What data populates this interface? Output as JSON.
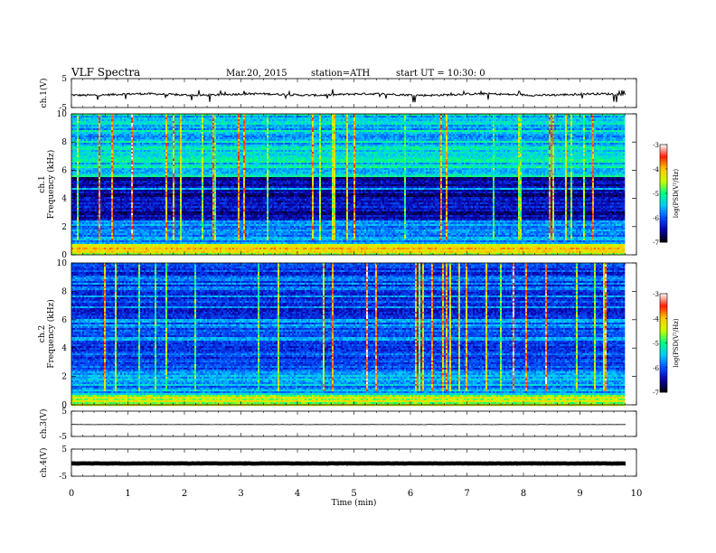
{
  "header": {
    "title": "VLF Spectra",
    "date": "Mar.20, 2015",
    "station": "station=ATH",
    "start": "start  UT =   10:30: 0"
  },
  "chart_data": [
    {
      "type": "line",
      "ylabel": "ch.1(V)",
      "y_ticks": [
        "5",
        "-5"
      ],
      "ylim": [
        -5,
        5
      ],
      "xlim": [
        0,
        10
      ],
      "description_values": {
        "baseline": -0.5,
        "spike_min": -3.0,
        "spike_max": 1.0
      },
      "color": "#000000"
    },
    {
      "type": "heatmap",
      "ylabel_top": "ch.1",
      "ylabel": "Frequency  (kHz)",
      "y_ticks": [
        "0",
        "2",
        "4",
        "6",
        "8",
        "10"
      ],
      "ylim": [
        0,
        10
      ],
      "xlim": [
        0,
        9.8
      ],
      "colorbar": {
        "label": "log(PSD(V²/Hz)",
        "ticks": [
          "-3",
          "-4",
          "-5",
          "-6",
          "-7"
        ],
        "range": [
          -7,
          -3
        ]
      }
    },
    {
      "type": "heatmap",
      "ylabel_top": "ch.2",
      "ylabel": "Frequency  (kHz)",
      "y_ticks": [
        "0",
        "2",
        "4",
        "6",
        "8",
        "10"
      ],
      "ylim": [
        0,
        10
      ],
      "xlim": [
        0,
        9.8
      ],
      "colorbar": {
        "label": "log(PSD(V²/Hz)",
        "ticks": [
          "-3",
          "-4",
          "-5",
          "-6",
          "-7"
        ],
        "range": [
          -7,
          -3
        ]
      }
    },
    {
      "type": "line",
      "ylabel": "ch.3(V)",
      "y_ticks": [
        "5",
        "-5"
      ],
      "ylim": [
        -5,
        5
      ],
      "xlim": [
        0,
        10
      ],
      "description_values": {
        "baseline": -0.3
      },
      "color": "#000000"
    },
    {
      "type": "line",
      "ylabel": "ch.4(V)",
      "y_ticks": [
        "5",
        "-5"
      ],
      "ylim": [
        -5,
        5
      ],
      "xlim": [
        0,
        10
      ],
      "description_values": {
        "baseline": -0.3
      },
      "color": "#000000"
    }
  ],
  "x_axis": {
    "label": "Time  (min)",
    "ticks": [
      "0",
      "1",
      "2",
      "3",
      "4",
      "5",
      "6",
      "7",
      "8",
      "9",
      "10"
    ],
    "range": [
      0,
      10
    ]
  },
  "colormap": [
    "#000000",
    "#0a00a8",
    "#0050ff",
    "#00c8ff",
    "#00ff80",
    "#c8ff00",
    "#ffc800",
    "#ff2000",
    "#ffffff"
  ]
}
